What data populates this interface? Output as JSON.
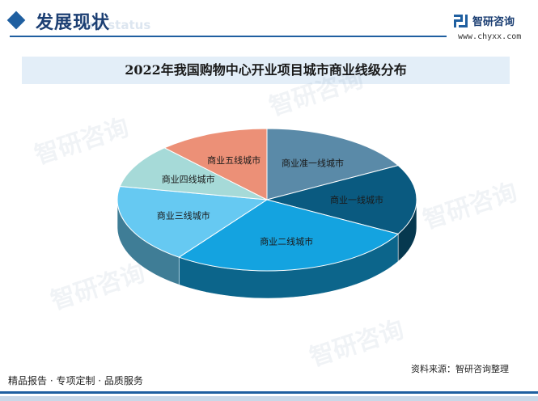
{
  "header": {
    "section_title": "发展现状",
    "section_subtitle": "ent status",
    "brand_name": "智研咨询",
    "brand_url": "www.chyxx.com",
    "brand_color": "#1f5fa0"
  },
  "watermark_text": "智研咨询",
  "footer": {
    "left_text": "精品报告 · 专项定制 · 品质服务",
    "source": "资料来源：智研咨询整理"
  },
  "chart_data": {
    "type": "pie",
    "title": "2022年我国购物中心开业项目城市商业线级分布",
    "slices": [
      {
        "label": "商业准一线城市",
        "value": 17,
        "color": "#5a8aa8"
      },
      {
        "label": "商业一线城市",
        "value": 16,
        "color": "#0a5a80"
      },
      {
        "label": "商业二线城市",
        "value": 27,
        "color": "#14a3e0"
      },
      {
        "label": "商业三线城市",
        "value": 18,
        "color": "#66c9f2"
      },
      {
        "label": "商业四线城市",
        "value": 10,
        "color": "#a6dad8"
      },
      {
        "label": "商业五线城市",
        "value": 12,
        "color": "#ec9077"
      }
    ],
    "legend": "none"
  }
}
